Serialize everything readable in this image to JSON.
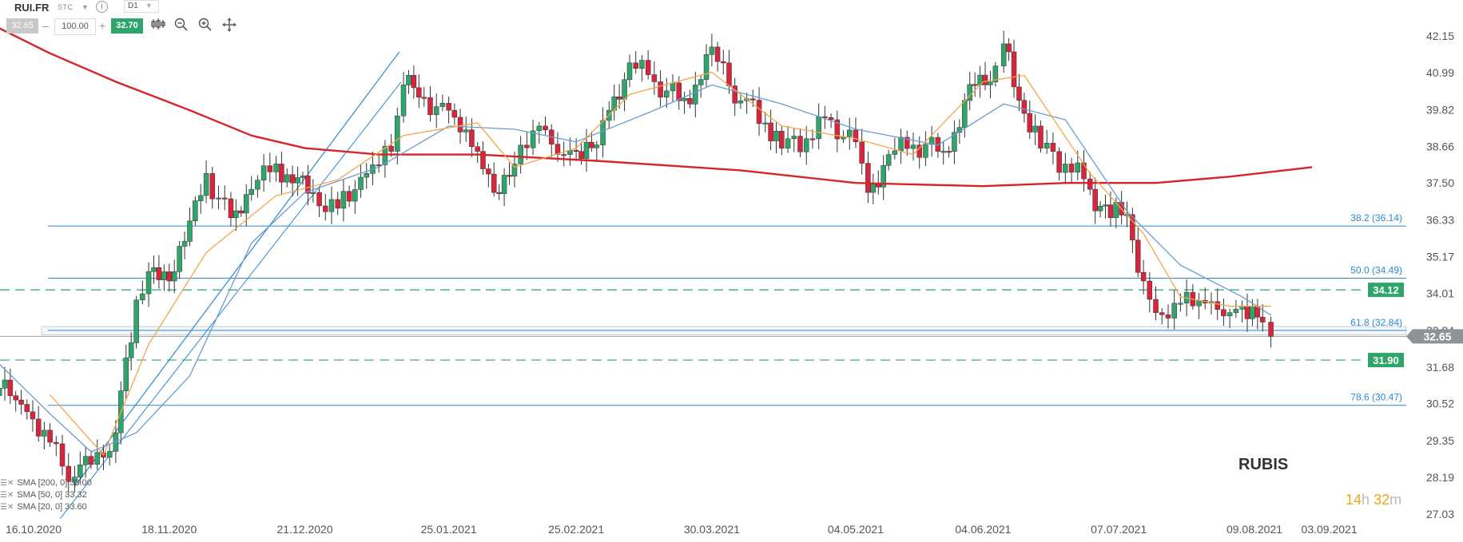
{
  "toolbar": {
    "symbol": "RUI.FR",
    "instrument_type": "STC",
    "timeframe": "D1",
    "bid": "32.65",
    "quantity": "100.00",
    "ask": "32.70",
    "icons": [
      "chart-type-icon",
      "zoom-out-icon",
      "zoom-in-icon",
      "crosshair-move-icon"
    ]
  },
  "colors": {
    "bull": "#2fa56b",
    "bear": "#d9253b",
    "sma200": "#d6242a",
    "sma50": "#6a9ccf",
    "sma20": "#f3a64a",
    "fib": "#2b89d4",
    "level": "#2fa56b",
    "price_tag": "#8c9398"
  },
  "chart_data": {
    "type": "candlestick",
    "title": "RUBIS",
    "ylim": [
      27.03,
      42.15
    ],
    "y_ticks": [
      42.15,
      40.99,
      39.82,
      38.66,
      37.5,
      36.33,
      35.17,
      34.01,
      32.84,
      31.68,
      30.52,
      29.35,
      28.19,
      27.03
    ],
    "y_tick_labels": [
      "42.15",
      "40.99",
      "39.82",
      "38.66",
      "37.50",
      "36.33",
      "35.17",
      "34.01",
      "32.84",
      "31.68",
      "30.52",
      "29.35",
      "28.19",
      "27.03"
    ],
    "x_labels": [
      "16.10.2020",
      "18.11.2020",
      "21.12.2020",
      "25.01.2021",
      "25.02.2021",
      "30.03.2021",
      "04.05.2021",
      "04.06.2021",
      "07.07.2021",
      "09.08.2021",
      "03.09.2021"
    ],
    "x_label_dates": [
      "2020-10-16",
      "2020-11-18",
      "2020-12-21",
      "2021-01-25",
      "2021-02-25",
      "2021-03-30",
      "2021-05-04",
      "2021-06-04",
      "2021-07-07",
      "2021-08-09",
      "2021-09-03"
    ],
    "close_series": [
      {
        "date": "2020-10-05",
        "close": 31.3
      },
      {
        "date": "2020-10-13",
        "close": 30.5
      },
      {
        "date": "2020-10-20",
        "close": 29.3
      },
      {
        "date": "2020-10-26",
        "close": 28.2
      },
      {
        "date": "2020-10-30",
        "close": 28.6
      },
      {
        "date": "2020-11-05",
        "close": 29.6
      },
      {
        "date": "2020-11-10",
        "close": 33.8
      },
      {
        "date": "2020-11-13",
        "close": 34.7
      },
      {
        "date": "2020-11-18",
        "close": 34.4
      },
      {
        "date": "2020-11-23",
        "close": 36.3
      },
      {
        "date": "2020-11-27",
        "close": 37.8
      },
      {
        "date": "2020-12-03",
        "close": 36.4
      },
      {
        "date": "2020-12-08",
        "close": 37.3
      },
      {
        "date": "2020-12-14",
        "close": 38.1
      },
      {
        "date": "2020-12-18",
        "close": 37.5
      },
      {
        "date": "2020-12-23",
        "close": 37.2
      },
      {
        "date": "2020-12-29",
        "close": 36.7
      },
      {
        "date": "2021-01-05",
        "close": 37.8
      },
      {
        "date": "2021-01-11",
        "close": 38.5
      },
      {
        "date": "2021-01-14",
        "close": 40.6
      },
      {
        "date": "2021-01-19",
        "close": 40.2
      },
      {
        "date": "2021-01-25",
        "close": 39.8
      },
      {
        "date": "2021-02-01",
        "close": 38.5
      },
      {
        "date": "2021-02-05",
        "close": 37.2
      },
      {
        "date": "2021-02-10",
        "close": 38.1
      },
      {
        "date": "2021-02-16",
        "close": 39.3
      },
      {
        "date": "2021-02-22",
        "close": 38.4
      },
      {
        "date": "2021-02-25",
        "close": 38.5
      },
      {
        "date": "2021-03-02",
        "close": 38.7
      },
      {
        "date": "2021-03-05",
        "close": 39.8
      },
      {
        "date": "2021-03-10",
        "close": 41.3
      },
      {
        "date": "2021-03-16",
        "close": 40.7
      },
      {
        "date": "2021-03-22",
        "close": 40.1
      },
      {
        "date": "2021-03-26",
        "close": 40.6
      },
      {
        "date": "2021-03-30",
        "close": 41.8
      },
      {
        "date": "2021-04-06",
        "close": 40.1
      },
      {
        "date": "2021-04-12",
        "close": 39.4
      },
      {
        "date": "2021-04-16",
        "close": 38.6
      },
      {
        "date": "2021-04-22",
        "close": 38.9
      },
      {
        "date": "2021-04-28",
        "close": 39.5
      },
      {
        "date": "2021-05-04",
        "close": 38.8
      },
      {
        "date": "2021-05-07",
        "close": 37.2
      },
      {
        "date": "2021-05-12",
        "close": 38.4
      },
      {
        "date": "2021-05-18",
        "close": 38.7
      },
      {
        "date": "2021-05-24",
        "close": 38.5
      },
      {
        "date": "2021-05-28",
        "close": 39.1
      },
      {
        "date": "2021-06-02",
        "close": 40.6
      },
      {
        "date": "2021-06-07",
        "close": 41.2
      },
      {
        "date": "2021-06-09",
        "close": 41.9
      },
      {
        "date": "2021-06-14",
        "close": 39.7
      },
      {
        "date": "2021-06-18",
        "close": 38.6
      },
      {
        "date": "2021-06-24",
        "close": 38.1
      },
      {
        "date": "2021-06-30",
        "close": 37.3
      },
      {
        "date": "2021-07-05",
        "close": 36.4
      },
      {
        "date": "2021-07-09",
        "close": 36.5
      },
      {
        "date": "2021-07-13",
        "close": 34.4
      },
      {
        "date": "2021-07-16",
        "close": 33.4
      },
      {
        "date": "2021-07-22",
        "close": 33.7
      },
      {
        "date": "2021-07-28",
        "close": 33.7
      },
      {
        "date": "2021-08-03",
        "close": 33.4
      },
      {
        "date": "2021-08-06",
        "close": 33.6
      },
      {
        "date": "2021-08-11",
        "close": 33.1
      },
      {
        "date": "2021-08-13",
        "close": 32.65
      }
    ],
    "sma_200": [
      {
        "date": "2020-10-06",
        "value": 42.5
      },
      {
        "date": "2020-10-20",
        "value": 41.6
      },
      {
        "date": "2020-11-05",
        "value": 40.7
      },
      {
        "date": "2020-11-23",
        "value": 39.8
      },
      {
        "date": "2020-12-08",
        "value": 39.0
      },
      {
        "date": "2020-12-21",
        "value": 38.6
      },
      {
        "date": "2021-01-08",
        "value": 38.4
      },
      {
        "date": "2021-02-01",
        "value": 38.4
      },
      {
        "date": "2021-03-02",
        "value": 38.2
      },
      {
        "date": "2021-04-06",
        "value": 37.9
      },
      {
        "date": "2021-05-04",
        "value": 37.5
      },
      {
        "date": "2021-06-04",
        "value": 37.4
      },
      {
        "date": "2021-06-24",
        "value": 37.5
      },
      {
        "date": "2021-07-16",
        "value": 37.5
      },
      {
        "date": "2021-08-03",
        "value": 37.7
      },
      {
        "date": "2021-08-23",
        "value": 38.0
      }
    ],
    "sma_50": [
      {
        "date": "2020-10-02",
        "value": 32.5
      },
      {
        "date": "2020-10-20",
        "value": 30.2
      },
      {
        "date": "2020-10-30",
        "value": 29.0
      },
      {
        "date": "2020-11-10",
        "value": 29.6
      },
      {
        "date": "2020-11-23",
        "value": 31.4
      },
      {
        "date": "2020-12-08",
        "value": 35.6
      },
      {
        "date": "2020-12-21",
        "value": 37.2
      },
      {
        "date": "2021-01-08",
        "value": 38.0
      },
      {
        "date": "2021-01-25",
        "value": 39.3
      },
      {
        "date": "2021-02-10",
        "value": 39.2
      },
      {
        "date": "2021-02-25",
        "value": 38.8
      },
      {
        "date": "2021-03-16",
        "value": 39.8
      },
      {
        "date": "2021-03-30",
        "value": 40.6
      },
      {
        "date": "2021-04-16",
        "value": 40.0
      },
      {
        "date": "2021-05-04",
        "value": 39.2
      },
      {
        "date": "2021-05-24",
        "value": 38.7
      },
      {
        "date": "2021-06-09",
        "value": 40.0
      },
      {
        "date": "2021-06-24",
        "value": 39.5
      },
      {
        "date": "2021-07-09",
        "value": 36.6
      },
      {
        "date": "2021-07-22",
        "value": 34.9
      },
      {
        "date": "2021-08-06",
        "value": 33.9
      },
      {
        "date": "2021-08-13",
        "value": 33.32
      }
    ],
    "sma_20": [
      {
        "date": "2020-10-20",
        "value": 30.8
      },
      {
        "date": "2020-11-02",
        "value": 28.9
      },
      {
        "date": "2020-11-13",
        "value": 32.4
      },
      {
        "date": "2020-11-27",
        "value": 35.3
      },
      {
        "date": "2020-12-14",
        "value": 37.1
      },
      {
        "date": "2020-12-29",
        "value": 37.6
      },
      {
        "date": "2021-01-14",
        "value": 39.0
      },
      {
        "date": "2021-02-01",
        "value": 39.4
      },
      {
        "date": "2021-02-10",
        "value": 38.0
      },
      {
        "date": "2021-02-25",
        "value": 38.6
      },
      {
        "date": "2021-03-10",
        "value": 40.3
      },
      {
        "date": "2021-03-30",
        "value": 41.0
      },
      {
        "date": "2021-04-16",
        "value": 39.3
      },
      {
        "date": "2021-05-04",
        "value": 38.9
      },
      {
        "date": "2021-05-18",
        "value": 38.4
      },
      {
        "date": "2021-06-04",
        "value": 40.7
      },
      {
        "date": "2021-06-14",
        "value": 40.9
      },
      {
        "date": "2021-06-30",
        "value": 37.8
      },
      {
        "date": "2021-07-13",
        "value": 35.9
      },
      {
        "date": "2021-07-22",
        "value": 33.9
      },
      {
        "date": "2021-08-03",
        "value": 33.6
      },
      {
        "date": "2021-08-13",
        "value": 33.6
      }
    ],
    "fib_lines": [
      {
        "level": "38.2",
        "price": 36.14,
        "label": "38.2 (36.14)"
      },
      {
        "level": "50.0",
        "price": 34.49,
        "label": "50.0 (34.49)"
      },
      {
        "level": "61.8",
        "price": 32.84,
        "label": "61.8 (32.84)"
      },
      {
        "level": "78.6",
        "price": 30.47,
        "label": "78.6 (30.47)"
      }
    ],
    "fib_anchor": {
      "from": {
        "date": "2020-10-26",
        "price": 27.9
      },
      "to": {
        "date": "2021-01-13",
        "price": 41.65
      }
    },
    "dashed_levels": [
      {
        "price": 34.12,
        "label": "34.12"
      },
      {
        "price": 31.9,
        "label": "31.90"
      }
    ],
    "current_price": {
      "price": 32.65,
      "label": "32.65"
    },
    "legend": [
      {
        "text": "SMA [200, 0] 38.00"
      },
      {
        "text": "SMA [50, 0] 33.32"
      },
      {
        "text": "SMA [20, 0] 33.60"
      }
    ],
    "countdown": {
      "hours": "14",
      "h": "h",
      "minutes": "32",
      "m": "m"
    }
  }
}
